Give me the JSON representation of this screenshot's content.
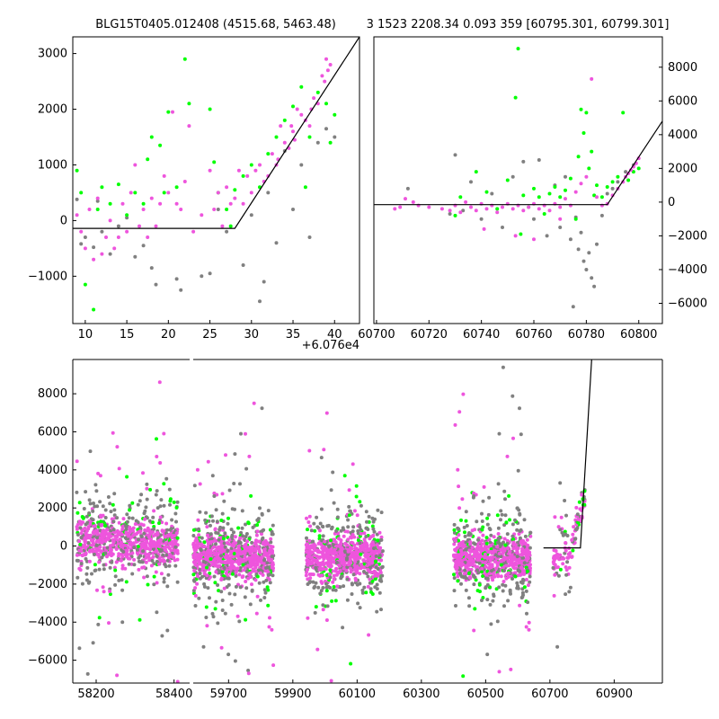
{
  "title_left": "BLG15T0405.012408 (4515.68, 5463.48)",
  "title_right": "3 1523 2208.34 0.093 359 [60795.301, 60799.301]",
  "colors": {
    "grey": "#808080",
    "green": "#00ff00",
    "magenta": "#ee55dd",
    "model": "#000000"
  },
  "chart_data": [
    {
      "panel": "zoom",
      "type": "scatter",
      "xlim": [
        8.5,
        43
      ],
      "ylim": [
        -1850,
        3300
      ],
      "x_offset_label": "+6.076e4",
      "xticks": [
        10,
        15,
        20,
        25,
        30,
        35,
        40
      ],
      "yticks": [
        -1000,
        0,
        1000,
        2000,
        3000
      ],
      "model": {
        "x": [
          8.5,
          28,
          43
        ],
        "y": [
          -140,
          -140,
          3300
        ]
      },
      "points": {
        "grey": [
          [
            9,
            380
          ],
          [
            9.5,
            -420
          ],
          [
            10,
            -300
          ],
          [
            11,
            -480
          ],
          [
            11.5,
            350
          ],
          [
            12,
            -200
          ],
          [
            13,
            -600
          ],
          [
            14,
            -100
          ],
          [
            15,
            50
          ],
          [
            16,
            -650
          ],
          [
            17,
            -450
          ],
          [
            18,
            -850
          ],
          [
            18.5,
            -1150
          ],
          [
            21,
            -1050
          ],
          [
            21.5,
            -1250
          ],
          [
            24,
            -1000
          ],
          [
            25,
            -950
          ],
          [
            26,
            200
          ],
          [
            27,
            -200
          ],
          [
            29,
            -800
          ],
          [
            30,
            100
          ],
          [
            31,
            -1450
          ],
          [
            32,
            500
          ],
          [
            33,
            -400
          ],
          [
            34,
            1250
          ],
          [
            36,
            1000
          ],
          [
            37,
            -300
          ],
          [
            38,
            1400
          ],
          [
            39,
            1650
          ],
          [
            40,
            1500
          ],
          [
            31.5,
            -1100
          ],
          [
            35,
            200
          ]
        ],
        "green": [
          [
            9,
            900
          ],
          [
            9.5,
            500
          ],
          [
            10,
            -1150
          ],
          [
            11,
            -1600
          ],
          [
            11.5,
            200
          ],
          [
            12,
            600
          ],
          [
            13,
            300
          ],
          [
            14,
            650
          ],
          [
            15,
            100
          ],
          [
            16,
            500
          ],
          [
            17,
            300
          ],
          [
            17.5,
            1100
          ],
          [
            18,
            1500
          ],
          [
            19,
            1350
          ],
          [
            19.5,
            500
          ],
          [
            20,
            1950
          ],
          [
            21,
            600
          ],
          [
            22,
            2900
          ],
          [
            22.5,
            2100
          ],
          [
            25,
            2000
          ],
          [
            25.5,
            1050
          ],
          [
            26,
            500
          ],
          [
            27,
            200
          ],
          [
            28,
            550
          ],
          [
            29,
            800
          ],
          [
            30,
            1000
          ],
          [
            31,
            600
          ],
          [
            32,
            1200
          ],
          [
            33,
            1500
          ],
          [
            34,
            1800
          ],
          [
            35,
            2050
          ],
          [
            36,
            2400
          ],
          [
            37,
            1500
          ],
          [
            38,
            2300
          ],
          [
            39,
            2100
          ],
          [
            40,
            1900
          ],
          [
            39.5,
            1400
          ],
          [
            36.5,
            600
          ],
          [
            27.5,
            -100
          ]
        ],
        "magenta": [
          [
            9,
            100
          ],
          [
            9.5,
            -200
          ],
          [
            10,
            -500
          ],
          [
            10.5,
            200
          ],
          [
            11,
            -700
          ],
          [
            11.5,
            400
          ],
          [
            12,
            -600
          ],
          [
            12.5,
            -300
          ],
          [
            13,
            0
          ],
          [
            13.5,
            -500
          ],
          [
            14,
            -300
          ],
          [
            14.5,
            300
          ],
          [
            15,
            -200
          ],
          [
            15.5,
            500
          ],
          [
            16,
            1000
          ],
          [
            16.5,
            -100
          ],
          [
            17,
            200
          ],
          [
            17.5,
            -300
          ],
          [
            18,
            400
          ],
          [
            18.5,
            -100
          ],
          [
            19,
            300
          ],
          [
            19.5,
            800
          ],
          [
            20,
            500
          ],
          [
            20.5,
            1950
          ],
          [
            21,
            300
          ],
          [
            21.5,
            200
          ],
          [
            22,
            700
          ],
          [
            22.5,
            1700
          ],
          [
            23,
            -200
          ],
          [
            24,
            100
          ],
          [
            25,
            900
          ],
          [
            25.5,
            200
          ],
          [
            26,
            500
          ],
          [
            26.5,
            -100
          ],
          [
            27,
            600
          ],
          [
            27.5,
            300
          ],
          [
            28,
            400
          ],
          [
            28.5,
            900
          ],
          [
            29,
            300
          ],
          [
            29.5,
            800
          ],
          [
            30,
            500
          ],
          [
            30.5,
            900
          ],
          [
            31,
            1000
          ],
          [
            31.5,
            700
          ],
          [
            32,
            800
          ],
          [
            32.5,
            1200
          ],
          [
            33,
            1000
          ],
          [
            33.5,
            1700
          ],
          [
            34,
            1400
          ],
          [
            34.5,
            1300
          ],
          [
            35,
            1600
          ],
          [
            35.5,
            2000
          ],
          [
            36,
            1900
          ],
          [
            36.5,
            1800
          ],
          [
            37,
            1700
          ],
          [
            37.5,
            2200
          ],
          [
            38,
            2100
          ],
          [
            38.5,
            2600
          ],
          [
            39,
            2900
          ],
          [
            39.5,
            2800
          ],
          [
            38.8,
            2500
          ],
          [
            39.2,
            2700
          ],
          [
            37.2,
            2000
          ],
          [
            35.2,
            1450
          ],
          [
            33.2,
            1100
          ],
          [
            34.8,
            1700
          ]
        ]
      }
    },
    {
      "panel": "mid",
      "type": "scatter",
      "xlim": [
        60699,
        60809
      ],
      "ylim": [
        -7200,
        9800
      ],
      "xticks": [
        60700,
        60720,
        60740,
        60760,
        60780,
        60800
      ],
      "yticks": [
        -6000,
        -4000,
        -2000,
        0,
        2000,
        4000,
        6000,
        8000
      ],
      "model": {
        "x": [
          60699,
          60788,
          60809
        ],
        "y": [
          -150,
          -150,
          4800
        ]
      },
      "points": {
        "grey": [
          [
            60712,
            800
          ],
          [
            60728,
            -700
          ],
          [
            60730,
            2800
          ],
          [
            60733,
            -500
          ],
          [
            60736,
            1200
          ],
          [
            60740,
            -1000
          ],
          [
            60744,
            500
          ],
          [
            60748,
            -1500
          ],
          [
            60752,
            1500
          ],
          [
            60756,
            2400
          ],
          [
            60760,
            -1000
          ],
          [
            60762,
            2500
          ],
          [
            60765,
            -2000
          ],
          [
            60768,
            1000
          ],
          [
            60770,
            -1500
          ],
          [
            60772,
            1500
          ],
          [
            60774,
            -2200
          ],
          [
            60776,
            -900
          ],
          [
            60777,
            -2800
          ],
          [
            60778,
            -1800
          ],
          [
            60779,
            -3500
          ],
          [
            60780,
            -4000
          ],
          [
            60781,
            -3000
          ],
          [
            60782,
            -4500
          ],
          [
            60783,
            -5000
          ],
          [
            60784,
            -2500
          ],
          [
            60786,
            -800
          ],
          [
            60788,
            500
          ],
          [
            60790,
            800
          ],
          [
            60792,
            1200
          ],
          [
            60795,
            1800
          ],
          [
            60798,
            2200
          ],
          [
            60775,
            -6200
          ]
        ],
        "green": [
          [
            60730,
            -800
          ],
          [
            60732,
            300
          ],
          [
            60738,
            1800
          ],
          [
            60742,
            600
          ],
          [
            60746,
            -400
          ],
          [
            60750,
            1300
          ],
          [
            60753,
            6200
          ],
          [
            60754,
            9100
          ],
          [
            60756,
            400
          ],
          [
            60758,
            -300
          ],
          [
            60760,
            800
          ],
          [
            60762,
            300
          ],
          [
            60764,
            -700
          ],
          [
            60766,
            500
          ],
          [
            60768,
            900
          ],
          [
            60770,
            300
          ],
          [
            60772,
            700
          ],
          [
            60774,
            1400
          ],
          [
            60776,
            -1000
          ],
          [
            60777,
            2700
          ],
          [
            60778,
            5500
          ],
          [
            60779,
            4100
          ],
          [
            60780,
            5300
          ],
          [
            60781,
            2000
          ],
          [
            60782,
            3000
          ],
          [
            60783,
            400
          ],
          [
            60784,
            1000
          ],
          [
            60786,
            300
          ],
          [
            60788,
            900
          ],
          [
            60790,
            1200
          ],
          [
            60792,
            1500
          ],
          [
            60794,
            5300
          ],
          [
            60796,
            1300
          ],
          [
            60798,
            1800
          ],
          [
            60800,
            2000
          ],
          [
            60755,
            -1900
          ]
        ],
        "magenta": [
          [
            60707,
            -400
          ],
          [
            60709,
            -300
          ],
          [
            60711,
            200
          ],
          [
            60714,
            0
          ],
          [
            60716,
            -200
          ],
          [
            60720,
            -300
          ],
          [
            60725,
            -400
          ],
          [
            60728,
            -500
          ],
          [
            60730,
            -200
          ],
          [
            60732,
            -600
          ],
          [
            60734,
            0
          ],
          [
            60736,
            -300
          ],
          [
            60738,
            -500
          ],
          [
            60740,
            -100
          ],
          [
            60742,
            -400
          ],
          [
            60744,
            -200
          ],
          [
            60746,
            -600
          ],
          [
            60748,
            -300
          ],
          [
            60750,
            -100
          ],
          [
            60752,
            -400
          ],
          [
            60754,
            -200
          ],
          [
            60756,
            -500
          ],
          [
            60758,
            -300
          ],
          [
            60760,
            -100
          ],
          [
            60762,
            -400
          ],
          [
            60764,
            -200
          ],
          [
            60766,
            -500
          ],
          [
            60768,
            -100
          ],
          [
            60770,
            -300
          ],
          [
            60772,
            200
          ],
          [
            60774,
            -200
          ],
          [
            60776,
            600
          ],
          [
            60778,
            1100
          ],
          [
            60780,
            1500
          ],
          [
            60782,
            7300
          ],
          [
            60784,
            300
          ],
          [
            60786,
            -200
          ],
          [
            60788,
            -100
          ],
          [
            60790,
            400
          ],
          [
            60792,
            800
          ],
          [
            60794,
            1200
          ],
          [
            60795,
            1500
          ],
          [
            60796,
            1700
          ],
          [
            60797,
            1900
          ],
          [
            60798,
            2100
          ],
          [
            60799,
            2300
          ],
          [
            60800,
            2600
          ],
          [
            60753,
            -2000
          ],
          [
            60760,
            -2200
          ],
          [
            60741,
            -1600
          ],
          [
            60770,
            -1000
          ]
        ]
      }
    },
    {
      "panel": "full",
      "type": "scatter",
      "ylim": [
        -7200,
        9800
      ],
      "xticks": [
        58200,
        58400,
        59700,
        59900,
        60100,
        60300,
        60500,
        60700,
        60900
      ],
      "yticks": [
        -6000,
        -4000,
        -2000,
        0,
        2000,
        4000,
        6000,
        8000
      ],
      "segments": [
        {
          "xlim": [
            58140,
            58440
          ],
          "clusters": [
            [
              58150,
              58410
            ]
          ]
        },
        {
          "xlim": [
            59590,
            61050
          ],
          "clusters": [
            [
              59590,
              59840
            ],
            [
              59940,
              60180
            ],
            [
              60400,
              60640
            ],
            [
              60710,
              60810
            ]
          ]
        }
      ],
      "model": {
        "x": [
          60680,
          60795,
          60830
        ],
        "y": [
          -100,
          -100,
          9800
        ]
      }
    }
  ]
}
